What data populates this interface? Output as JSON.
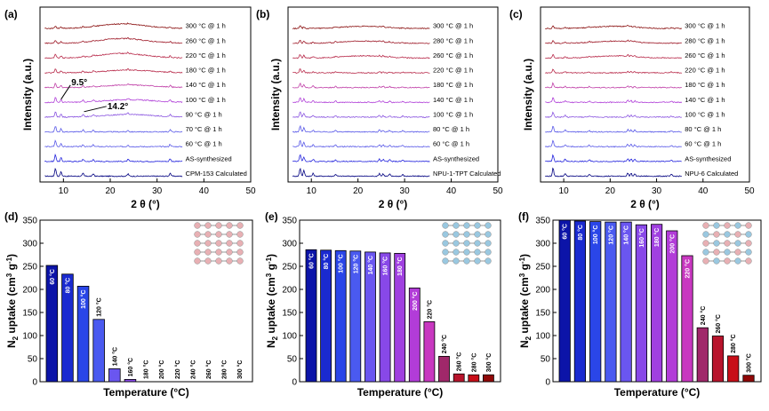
{
  "colors": {
    "trace_gradient": [
      "#0a0ab4",
      "#2222dd",
      "#5a5ae8",
      "#8a55e0",
      "#b040d8",
      "#c040a8",
      "#b82a4a",
      "#9e1a28",
      "#8a1010"
    ],
    "axis": "#000000",
    "inset_pink": "#e8b0b4",
    "inset_blue": "#9ac8e0"
  },
  "chart_data": [
    {
      "panel": "(a)",
      "type": "line",
      "xlabel": "2 θ (°)",
      "ylabel": "Intensity (a.u.)",
      "xlim": [
        5,
        50
      ],
      "xticks": [
        10,
        20,
        30,
        40,
        50
      ],
      "series": [
        {
          "name": "CPM-153 Calculated"
        },
        {
          "name": "AS-synthesized"
        },
        {
          "name": "60 °C @ 1 h"
        },
        {
          "name": "70 °C @ 1 h"
        },
        {
          "name": "90 °C @ 1 h"
        },
        {
          "name": "100 °C @ 1 h"
        },
        {
          "name": "140 °C @ 1 h"
        },
        {
          "name": "180 °C @ 1 h"
        },
        {
          "name": "220 °C @ 1 h"
        },
        {
          "name": "260 °C @ 1 h"
        },
        {
          "name": "300 °C @ 1 h"
        }
      ],
      "annotations": [
        {
          "text": "9.5°",
          "x": 9.5
        },
        {
          "text": "14.2°",
          "x": 14.2
        }
      ]
    },
    {
      "panel": "(b)",
      "type": "line",
      "xlabel": "2 θ (°)",
      "ylabel": "Intensity (a.u.)",
      "xlim": [
        5,
        50
      ],
      "xticks": [
        10,
        20,
        30,
        40,
        50
      ],
      "series": [
        {
          "name": "NPU-1-TPT Calculated"
        },
        {
          "name": "AS-synthesized"
        },
        {
          "name": "60 °C @ 1 h"
        },
        {
          "name": "80 °C @ 1 h"
        },
        {
          "name": "100 °C @ 1 h"
        },
        {
          "name": "140 °C @ 1 h"
        },
        {
          "name": "180 °C @ 1 h"
        },
        {
          "name": "220 °C @ 1 h"
        },
        {
          "name": "260 °C @ 1 h"
        },
        {
          "name": "280 °C @ 1 h"
        },
        {
          "name": "300 °C @ 1 h"
        }
      ]
    },
    {
      "panel": "(c)",
      "type": "line",
      "xlabel": "2 θ (°)",
      "ylabel": "Intensity (a.u.)",
      "xlim": [
        5,
        50
      ],
      "xticks": [
        10,
        20,
        30,
        40,
        50
      ],
      "series": [
        {
          "name": "NPU-6 Calculated"
        },
        {
          "name": "AS-synthesized"
        },
        {
          "name": "60 °C @ 1 h"
        },
        {
          "name": "80 °C @ 1 h"
        },
        {
          "name": "100 °C @ 1 h"
        },
        {
          "name": "140 °C @ 1 h"
        },
        {
          "name": "180 °C @ 1 h"
        },
        {
          "name": "220 °C @ 1 h"
        },
        {
          "name": "260 °C @ 1 h"
        },
        {
          "name": "280 °C @ 1 h"
        },
        {
          "name": "300 °C @ 1 h"
        }
      ]
    },
    {
      "panel": "(d)",
      "type": "bar",
      "xlabel": "Temperature (°C)",
      "ylabel": "N2 uptake (cm3 g-1)",
      "ylim": [
        0,
        350
      ],
      "yticks": [
        0,
        50,
        100,
        150,
        200,
        250,
        300,
        350
      ],
      "categories": [
        "60 °C",
        "80 °C",
        "100 °C",
        "120 °C",
        "140 °C",
        "160 °C",
        "180 °C",
        "200 °C",
        "220 °C",
        "240 °C",
        "260 °C",
        "280 °C",
        "300 °C"
      ],
      "values": [
        252,
        233,
        207,
        135,
        28,
        5,
        0,
        0,
        0,
        0,
        0,
        0,
        0
      ]
    },
    {
      "panel": "(e)",
      "type": "bar",
      "xlabel": "Temperature (°C)",
      "ylabel": "N2 uptake (cm3 g-1)",
      "ylim": [
        0,
        350
      ],
      "yticks": [
        0,
        50,
        100,
        150,
        200,
        250,
        300,
        350
      ],
      "categories": [
        "60 °C",
        "80 °C",
        "100 °C",
        "120 °C",
        "140 °C",
        "160 °C",
        "180 °C",
        "200 °C",
        "220 °C",
        "240 °C",
        "260 °C",
        "280 °C",
        "300 °C"
      ],
      "values": [
        286,
        285,
        284,
        283,
        281,
        279,
        278,
        203,
        130,
        55,
        17,
        15,
        15
      ]
    },
    {
      "panel": "(f)",
      "type": "bar",
      "xlabel": "Temperature (°C)",
      "ylabel": "N2 uptake (cm3 g-1)",
      "ylim": [
        0,
        350
      ],
      "yticks": [
        0,
        50,
        100,
        150,
        200,
        250,
        300,
        350
      ],
      "categories": [
        "60 °C",
        "80 °C",
        "100 °C",
        "120 °C",
        "140 °C",
        "160 °C",
        "180 °C",
        "200 °C",
        "220 °C",
        "240 °C",
        "260 °C",
        "280 °C",
        "300 °C"
      ],
      "values": [
        350,
        348,
        347,
        346,
        346,
        340,
        341,
        327,
        273,
        117,
        99,
        56,
        14
      ]
    }
  ]
}
